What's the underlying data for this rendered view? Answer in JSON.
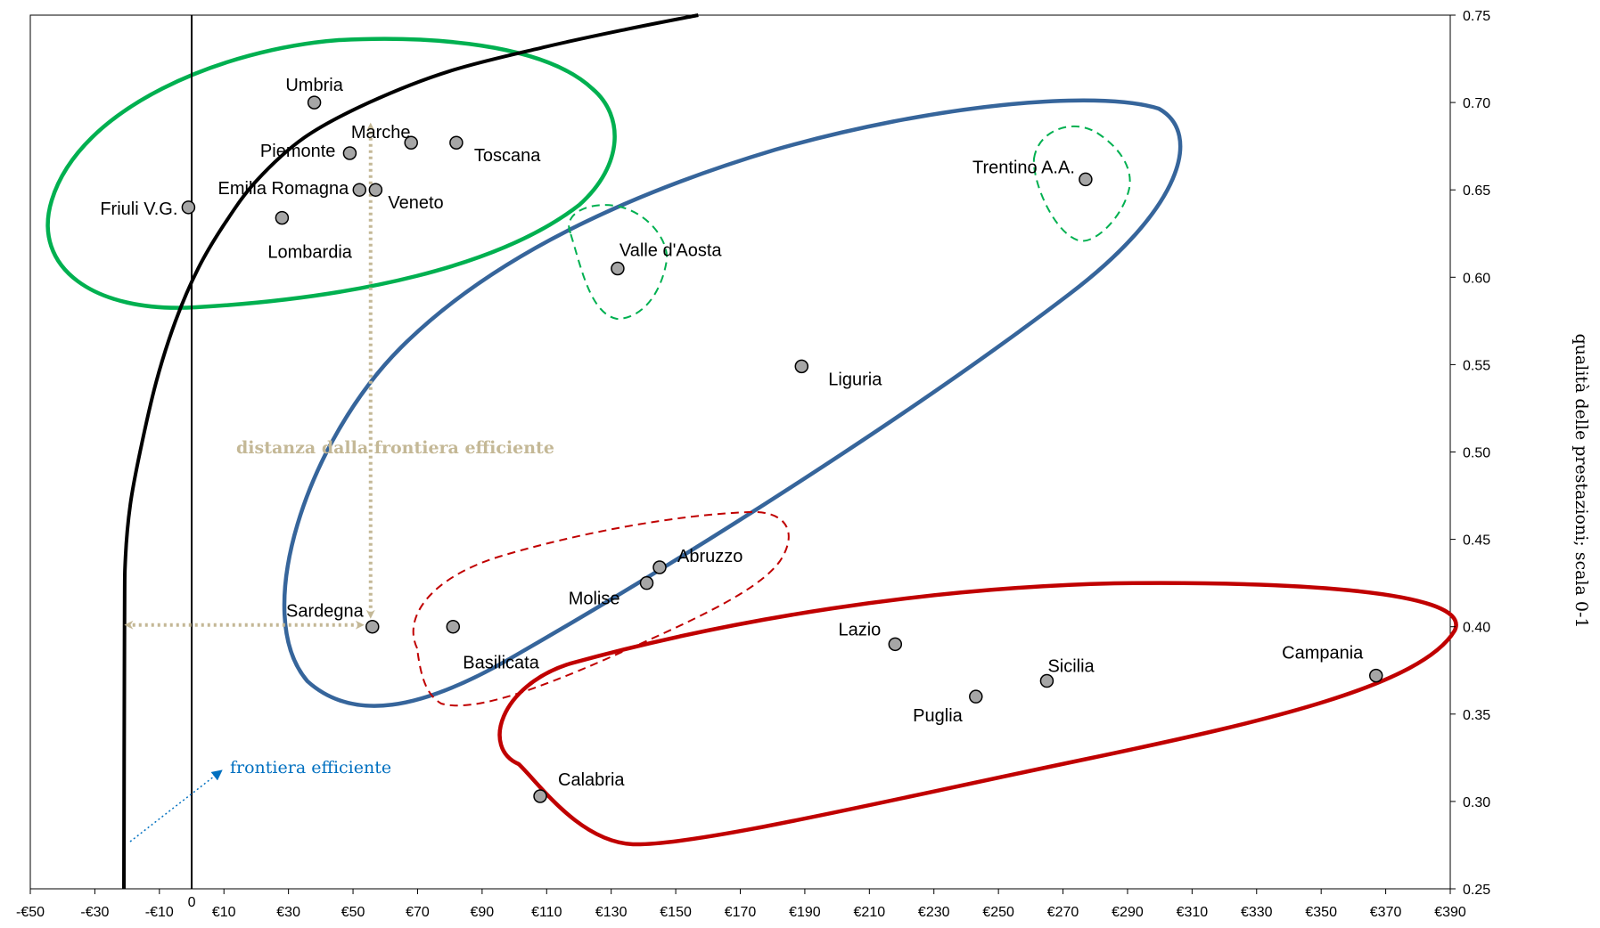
{
  "chart_data": {
    "type": "scatter",
    "title": "",
    "xlabel": "",
    "ylabel": "qualità delle prestazioni; scala 0-1",
    "xlim": [
      -50,
      390
    ],
    "ylim": [
      0.25,
      0.75
    ],
    "x_tick_values": [
      -50,
      -30,
      -10,
      10,
      30,
      50,
      70,
      90,
      110,
      130,
      150,
      170,
      190,
      210,
      230,
      250,
      270,
      290,
      310,
      330,
      350,
      370,
      390
    ],
    "x_ticks": [
      "-€50",
      "-€30",
      "-€10",
      "€10",
      "€30",
      "€50",
      "€70",
      "€90",
      "€110",
      "€130",
      "€150",
      "€170",
      "€190",
      "€210",
      "€230",
      "€250",
      "€270",
      "€290",
      "€310",
      "€330",
      "€350",
      "€370",
      "€390"
    ],
    "y_tick_values": [
      0.25,
      0.3,
      0.35,
      0.4,
      0.45,
      0.5,
      0.55,
      0.6,
      0.65,
      0.7,
      0.75
    ],
    "y_ticks": [
      "0.25",
      "0.30",
      "0.35",
      "0.40",
      "0.45",
      "0.50",
      "0.55",
      "0.60",
      "0.65",
      "0.70",
      "0.75"
    ],
    "zero_label": "0",
    "y_axis_position": "right",
    "grid": false,
    "points": [
      {
        "name": "Umbria",
        "x": 38,
        "y": 0.7
      },
      {
        "name": "Marche",
        "x": 68,
        "y": 0.677
      },
      {
        "name": "Toscana",
        "x": 82,
        "y": 0.677
      },
      {
        "name": "Piemonte",
        "x": 49,
        "y": 0.671
      },
      {
        "name": "Emilia Romagna",
        "x": 52,
        "y": 0.65
      },
      {
        "name": "Veneto",
        "x": 57,
        "y": 0.65
      },
      {
        "name": "Friuli V.G.",
        "x": -1,
        "y": 0.64
      },
      {
        "name": "Lombardia",
        "x": 28,
        "y": 0.634
      },
      {
        "name": "Trentino A.A.",
        "x": 277,
        "y": 0.656
      },
      {
        "name": "Valle d'Aosta",
        "x": 132,
        "y": 0.605
      },
      {
        "name": "Liguria",
        "x": 189,
        "y": 0.549
      },
      {
        "name": "Abruzzo",
        "x": 145,
        "y": 0.434
      },
      {
        "name": "Molise",
        "x": 141,
        "y": 0.425
      },
      {
        "name": "Sardegna",
        "x": 56,
        "y": 0.4
      },
      {
        "name": "Basilicata",
        "x": 81,
        "y": 0.4
      },
      {
        "name": "Lazio",
        "x": 218,
        "y": 0.39
      },
      {
        "name": "Sicilia",
        "x": 265,
        "y": 0.369
      },
      {
        "name": "Puglia",
        "x": 243,
        "y": 0.36
      },
      {
        "name": "Campania",
        "x": 367,
        "y": 0.372
      },
      {
        "name": "Calabria",
        "x": 108,
        "y": 0.303
      }
    ],
    "frontier": [
      [
        -21,
        0.25
      ],
      [
        -20.8,
        0.4
      ],
      [
        -20.5,
        0.44
      ],
      [
        -19,
        0.47
      ],
      [
        -16,
        0.5
      ],
      [
        -11,
        0.54
      ],
      [
        -5,
        0.575
      ],
      [
        2,
        0.605
      ],
      [
        10,
        0.63
      ],
      [
        20,
        0.655
      ],
      [
        35,
        0.68
      ],
      [
        55,
        0.7
      ],
      [
        80,
        0.718
      ],
      [
        110,
        0.732
      ],
      [
        135,
        0.742
      ],
      [
        157,
        0.75
      ]
    ],
    "annotations": {
      "distance": "distanza dalla frontiera efficiente",
      "frontier": "frontiera efficiente"
    },
    "colors": {
      "green": "#00b050",
      "blue": "#36659b",
      "red": "#c00000",
      "tan": "#c4b896",
      "annotation_blue": "#0070c0",
      "point_fill": "#a6a6a6"
    }
  }
}
